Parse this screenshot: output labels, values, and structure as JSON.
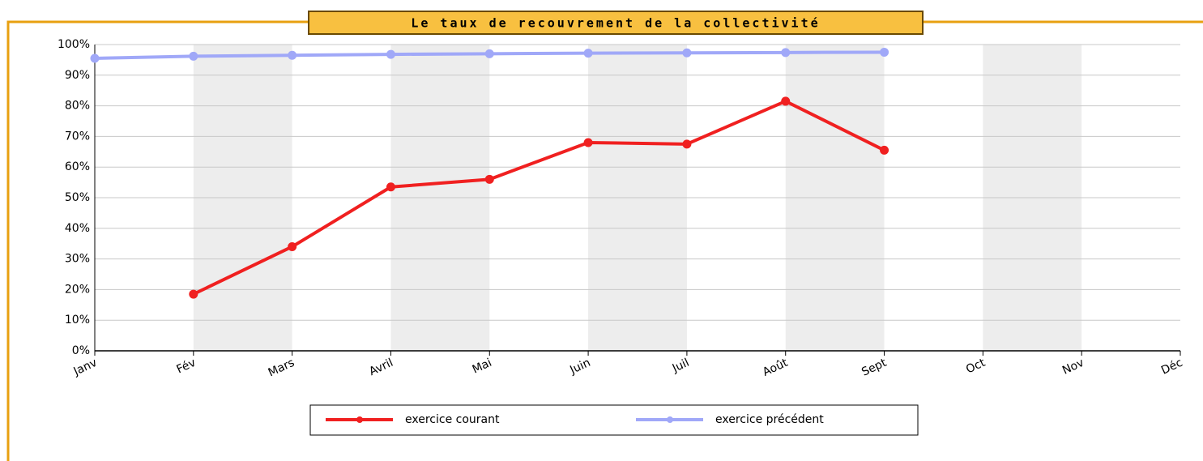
{
  "chart_data": {
    "type": "line",
    "title": "Le taux de recouvrement de la collectivité",
    "categories": [
      "Janv",
      "Fév",
      "Mars",
      "Avril",
      "Mai",
      "Juin",
      "Juil",
      "Août",
      "Sept",
      "Oct",
      "Nov",
      "Déc"
    ],
    "series": [
      {
        "name": "exercice courant",
        "color": "#f02020",
        "values": [
          null,
          18.5,
          34,
          53.5,
          56,
          68,
          67.5,
          81.5,
          65.5,
          null,
          null,
          null
        ]
      },
      {
        "name": "exercice précédent",
        "color": "#a0a8f8",
        "values": [
          95.5,
          96.2,
          96.5,
          96.8,
          97,
          97.2,
          97.3,
          97.4,
          97.5,
          null,
          null,
          null
        ]
      }
    ],
    "ylim": [
      0,
      100
    ],
    "yticks": [
      {
        "value": 0,
        "label": "0%"
      },
      {
        "value": 10,
        "label": "10%"
      },
      {
        "value": 20,
        "label": "20%"
      },
      {
        "value": 30,
        "label": "30%"
      },
      {
        "value": 40,
        "label": "40%"
      },
      {
        "value": 50,
        "label": "50%"
      },
      {
        "value": 60,
        "label": "60%"
      },
      {
        "value": 70,
        "label": "70%"
      },
      {
        "value": 80,
        "label": "80%"
      },
      {
        "value": 90,
        "label": "90%"
      },
      {
        "value": 100,
        "label": "100%"
      }
    ],
    "grid": true
  }
}
